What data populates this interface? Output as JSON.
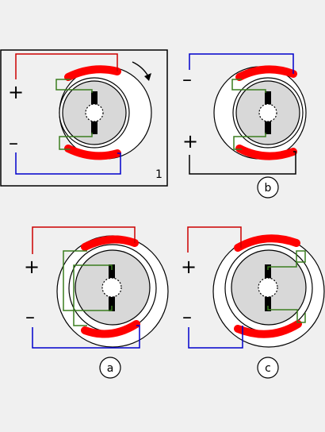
{
  "labels": {
    "plus": "+",
    "minus": "–",
    "panel_1": "1",
    "panel_b": "b",
    "panel_a": "a",
    "panel_c": "c"
  },
  "colors": {
    "background": "#f0f0f0",
    "positive_wire": "#cc0000",
    "negative_wire": "#0000cc",
    "black_wire": "#000000",
    "coil_wire": "#3a7d1f",
    "magnet": "#ff0000",
    "stator_fill": "#ffffff",
    "rotor_fill": "#d8d8d8",
    "outline": "#000000"
  },
  "icons": {
    "rotation": "clockwise-arrow-icon"
  }
}
